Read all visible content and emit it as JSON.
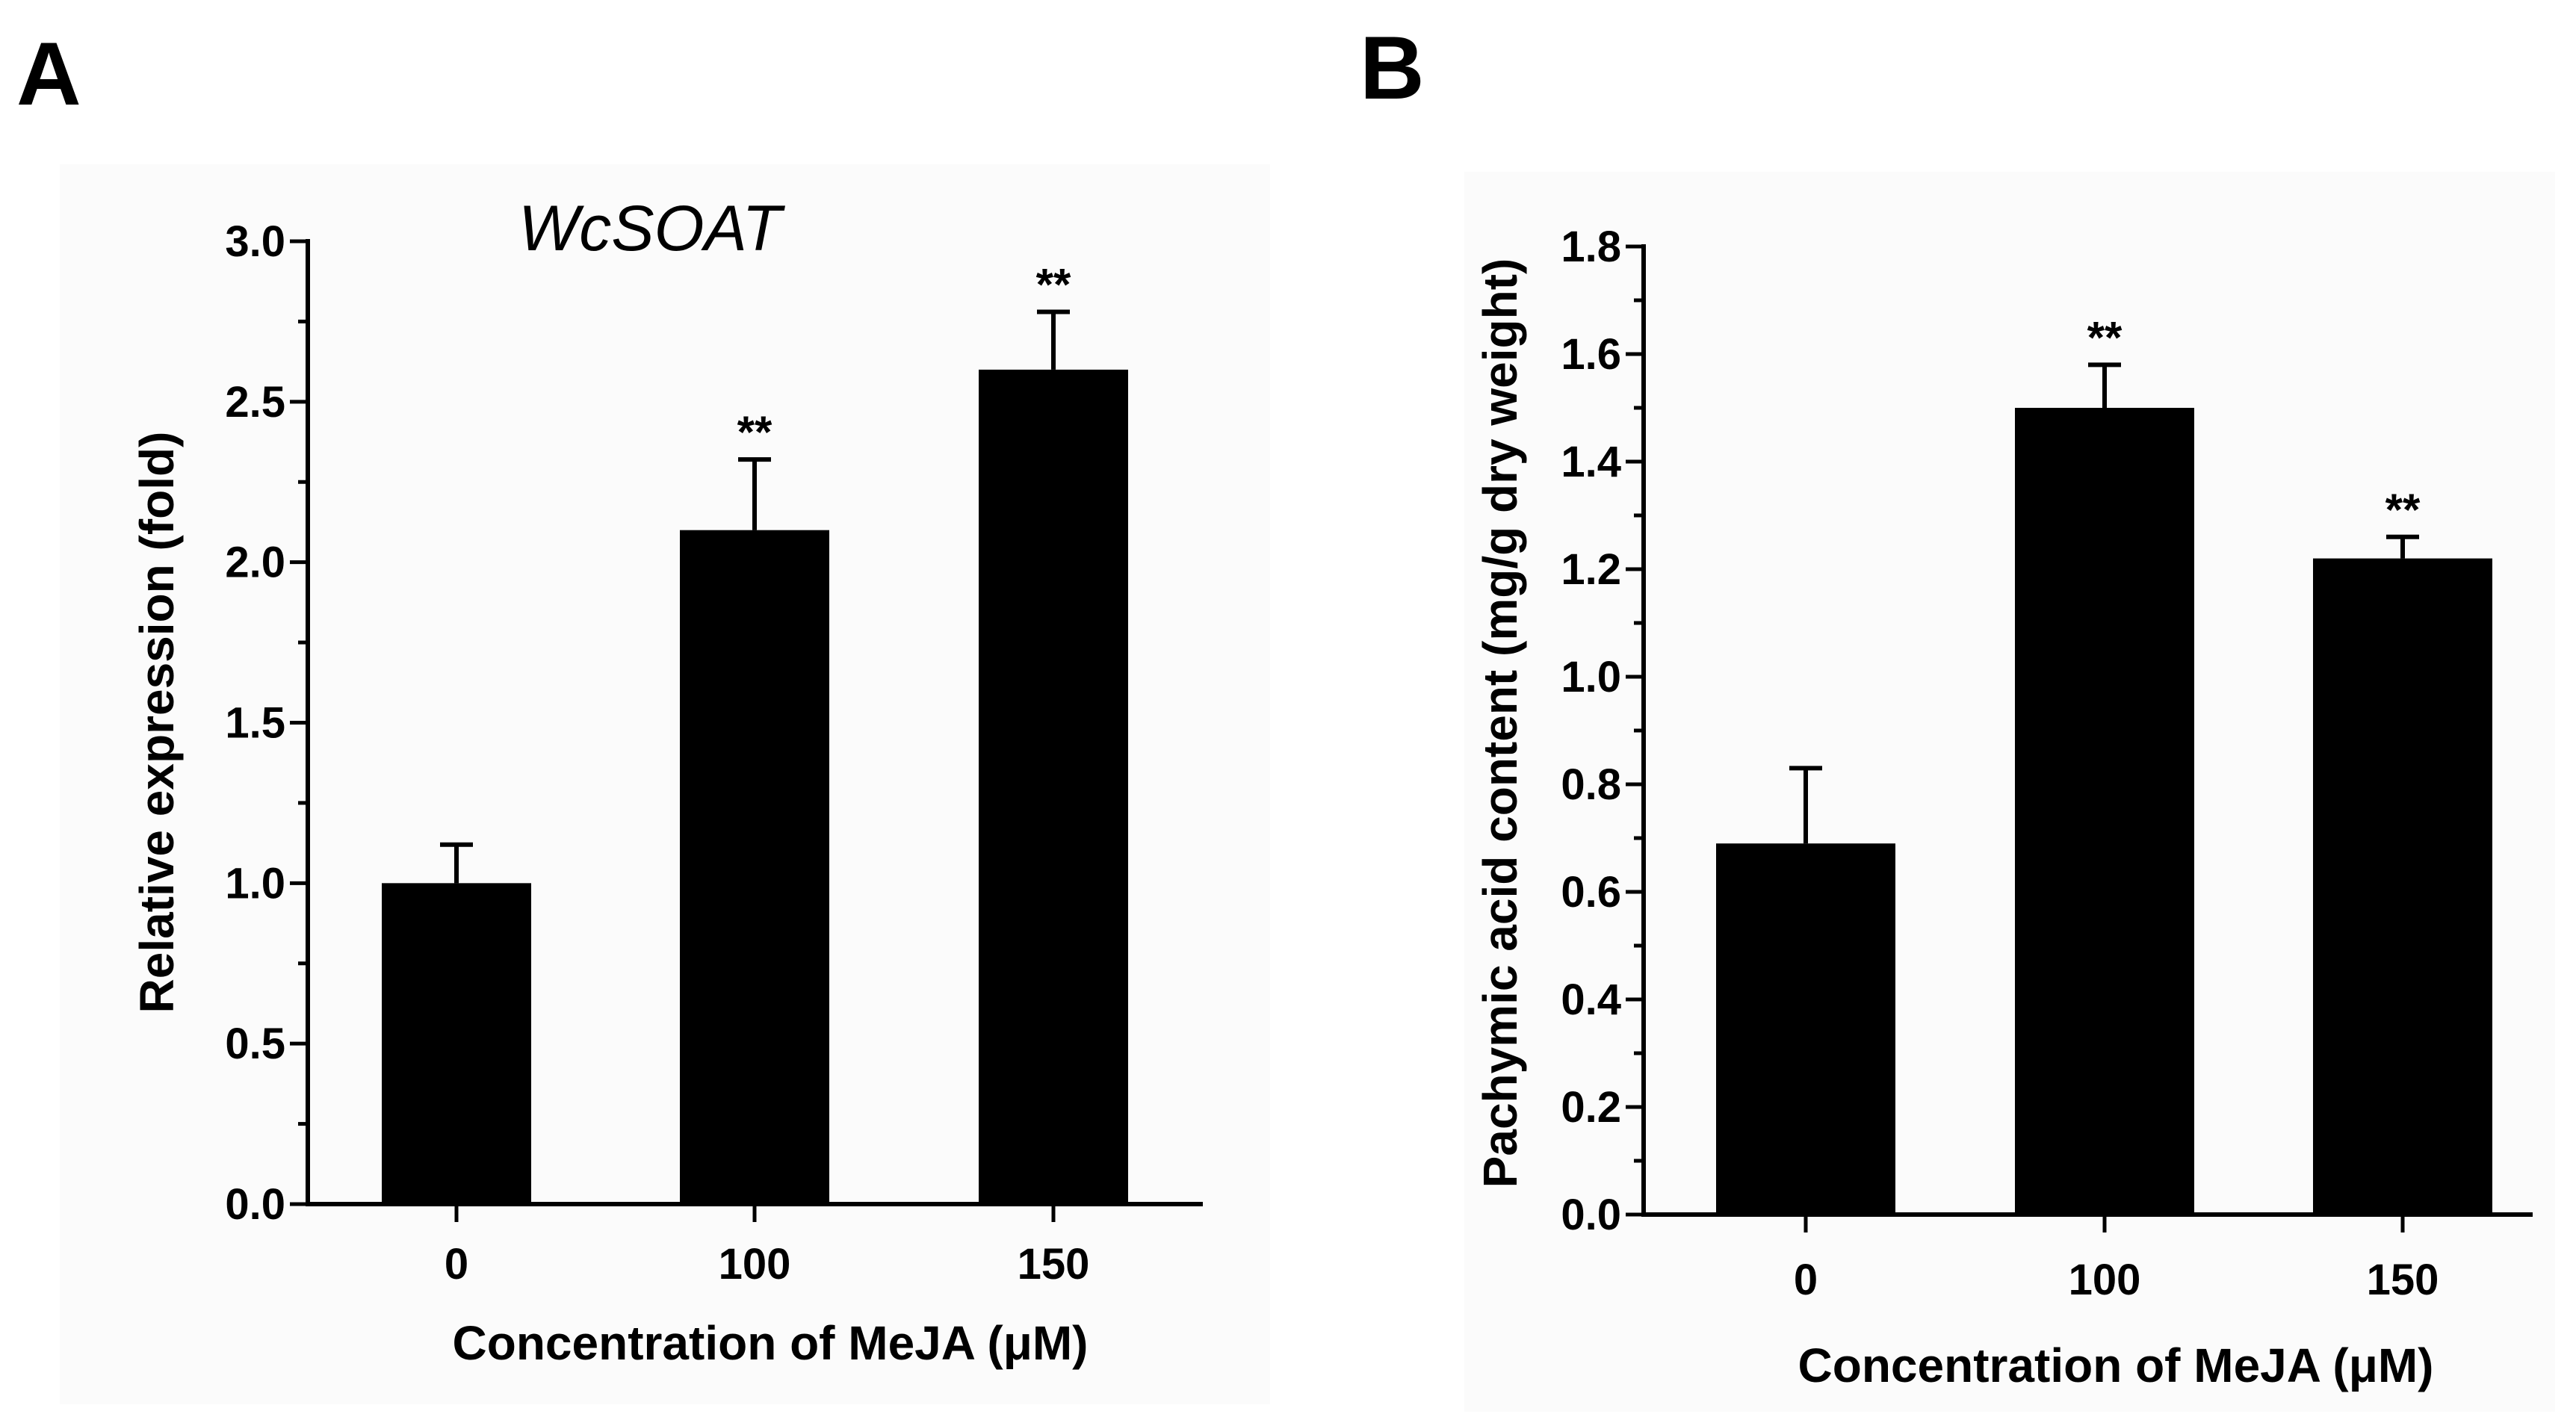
{
  "chart_data": [
    {
      "panel": "A",
      "type": "bar",
      "title": "WcSOAT",
      "xlabel": "Concentration of MeJA (μM)",
      "ylabel": "Relative expression (fold)",
      "categories": [
        "0",
        "100",
        "150"
      ],
      "values": [
        1.0,
        2.1,
        2.6
      ],
      "errors": [
        0.12,
        0.22,
        0.18
      ],
      "annotations": [
        "",
        "**",
        "**"
      ],
      "ylim": [
        0,
        3.0
      ],
      "yticks": [
        0.0,
        0.5,
        1.0,
        1.5,
        2.0,
        2.5,
        3.0
      ],
      "ytick_labels": [
        "0.0",
        "0.5",
        "1.0",
        "1.5",
        "2.0",
        "2.5",
        "3.0"
      ],
      "minor_step": 0.25,
      "bar_color": "#000000",
      "grid": false
    },
    {
      "panel": "B",
      "type": "bar",
      "title": "",
      "xlabel": "Concentration of MeJA (μM)",
      "ylabel": "Pachymic acid content (mg/g dry weight)",
      "categories": [
        "0",
        "100",
        "150"
      ],
      "values": [
        0.69,
        1.5,
        1.22
      ],
      "errors": [
        0.14,
        0.08,
        0.04
      ],
      "annotations": [
        "",
        "**",
        "**"
      ],
      "ylim": [
        0,
        1.8
      ],
      "yticks": [
        0.0,
        0.2,
        0.4,
        0.6,
        0.8,
        1.0,
        1.2,
        1.4,
        1.6,
        1.8
      ],
      "ytick_labels": [
        "0.0",
        "0.2",
        "0.4",
        "0.6",
        "0.8",
        "1.0",
        "1.2",
        "1.4",
        "1.6",
        "1.8"
      ],
      "minor_step": 0.1,
      "bar_color": "#000000",
      "grid": false
    }
  ]
}
